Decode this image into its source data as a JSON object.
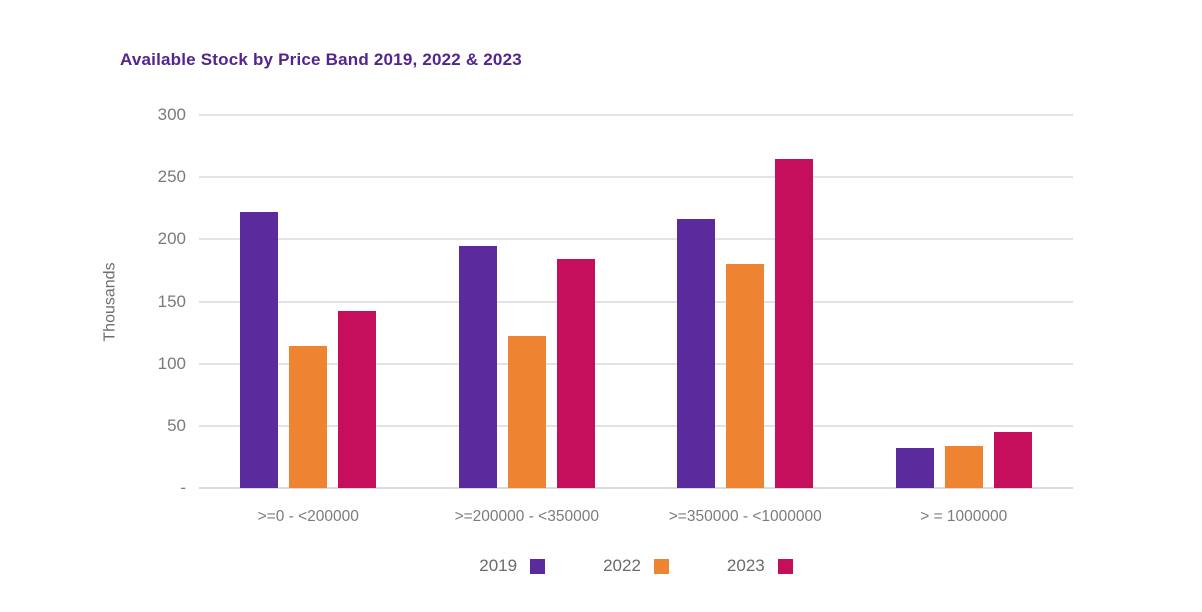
{
  "chart_data": {
    "type": "bar",
    "title": "Available Stock by Price Band 2019, 2022 & 2023",
    "xlabel": "",
    "ylabel": "Thousands",
    "ylim": [
      0,
      300
    ],
    "yticks": [
      {
        "value": 300,
        "label": "300"
      },
      {
        "value": 250,
        "label": "250"
      },
      {
        "value": 200,
        "label": "200"
      },
      {
        "value": 150,
        "label": "150"
      },
      {
        "value": 100,
        "label": "100"
      },
      {
        "value": 50,
        "label": "50"
      },
      {
        "value": 0,
        "label": "-"
      }
    ],
    "grid": "horizontal",
    "legend_position": "bottom",
    "categories": [
      ">=0 - <200000",
      ">=200000 - <350000",
      ">=350000 - <1000000",
      "> = 1000000"
    ],
    "series": [
      {
        "name": "2019",
        "color": "#5b2a9d",
        "values": [
          222,
          195,
          216,
          32
        ]
      },
      {
        "name": "2022",
        "color": "#ee8331",
        "values": [
          114,
          122,
          180,
          34
        ]
      },
      {
        "name": "2023",
        "color": "#c50f5c",
        "values": [
          142,
          184,
          265,
          45
        ]
      }
    ],
    "colors": {
      "title": "#53258e",
      "axis_text": "#7a7a7a",
      "gridline": "#e4e2e4",
      "background": "#ffffff"
    }
  }
}
